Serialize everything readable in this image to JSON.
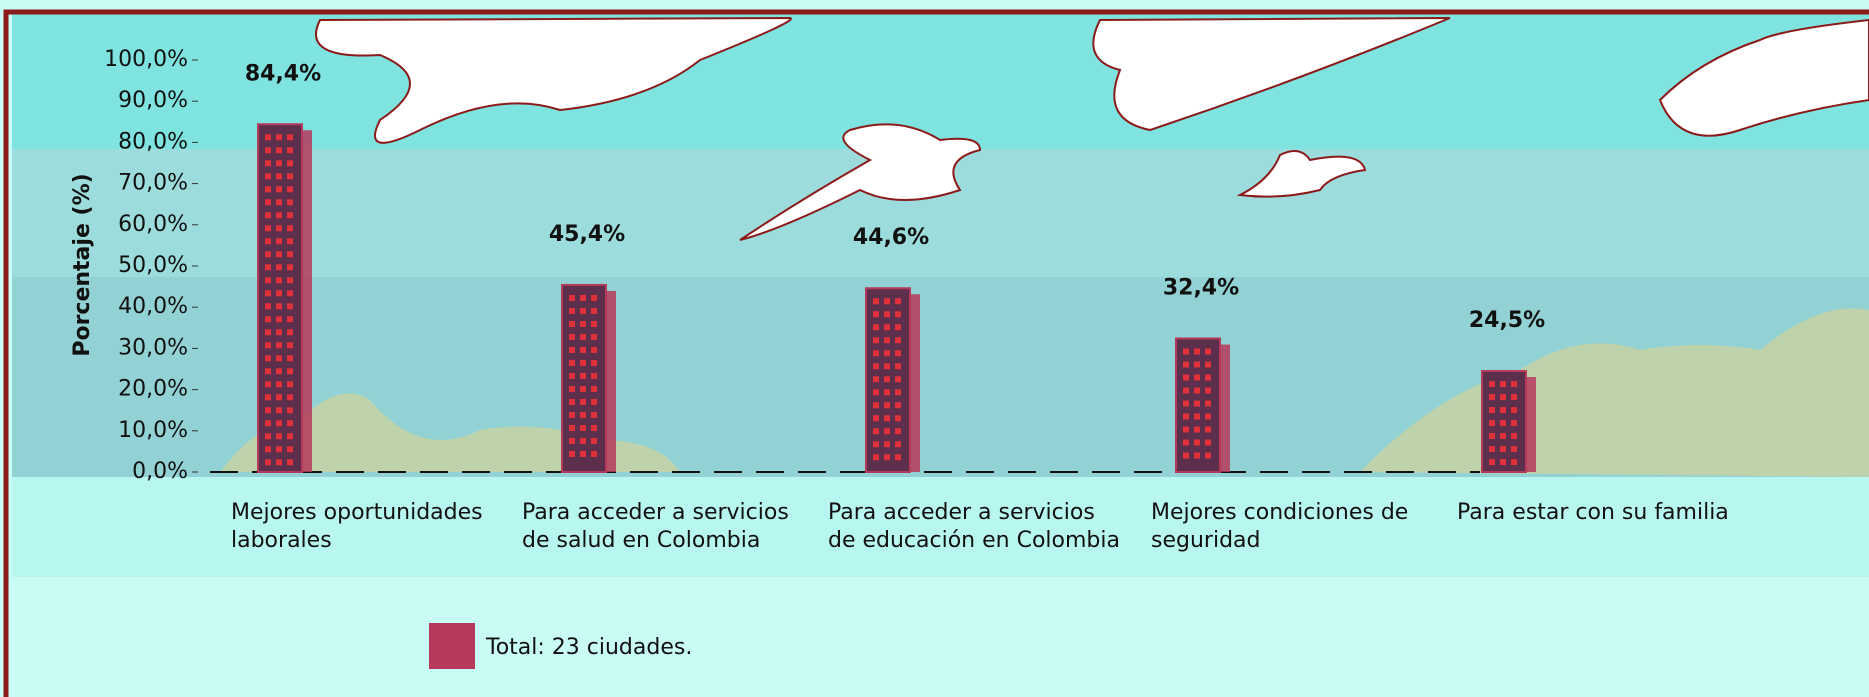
{
  "chart_data": {
    "type": "bar",
    "y_label": "Porcentaje (%)",
    "categories": [
      "Mejores oportunidades laborales",
      "Para acceder a servicios de salud en Colombia",
      "Para acceder a servicios de educación en Colombia",
      "Mejores condiciones de seguridad",
      "Para estar con su familia"
    ],
    "series": [
      {
        "name": "Total: 23 ciudades.",
        "color": "#b5395a",
        "values": [
          84.4,
          45.4,
          44.6,
          32.4,
          24.5
        ],
        "value_labels": [
          "84,4%",
          "45,4%",
          "44,6%",
          "32,4%",
          "24,5%"
        ]
      }
    ],
    "ylim": [
      0,
      100
    ],
    "yticks": [
      {
        "value": 0,
        "label": "0,0%"
      },
      {
        "value": 10,
        "label": "10,0%"
      },
      {
        "value": 20,
        "label": "20,0%"
      },
      {
        "value": 30,
        "label": "30,0%"
      },
      {
        "value": 40,
        "label": "40,0%"
      },
      {
        "value": 50,
        "label": "50,0%"
      },
      {
        "value": 60,
        "label": "60,0%"
      },
      {
        "value": 70,
        "label": "70,0%"
      },
      {
        "value": 80,
        "label": "80,0%"
      },
      {
        "value": 90,
        "label": "90,0%"
      },
      {
        "value": 100,
        "label": "100,0%"
      }
    ],
    "grid": false
  }
}
